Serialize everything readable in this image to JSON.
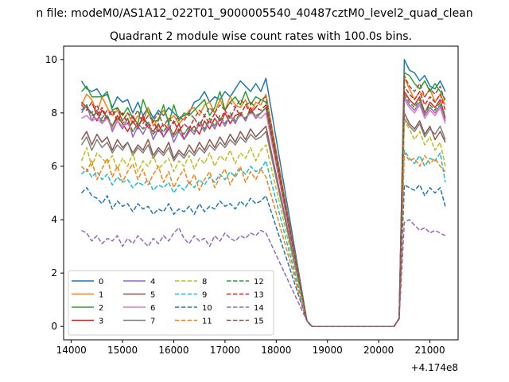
{
  "figure": {
    "suptitle": "n file: modeM0/AS1A12_022T01_9000005540_40487cztM0_level2_quad_clean",
    "offset_label": "+4.174e8"
  },
  "chart_data": {
    "type": "line",
    "title": "Quadrant 2 module wise count rates with 100.0s bins.",
    "xlabel": "",
    "ylabel": "",
    "x_offset": 417400000,
    "xlim": [
      13850,
      21550
    ],
    "ylim": [
      -0.5,
      10.5
    ],
    "xticks": [
      14000,
      15000,
      16000,
      17000,
      18000,
      19000,
      20000,
      21000
    ],
    "yticks": [
      0,
      2,
      4,
      6,
      8,
      10
    ],
    "grid": false,
    "legend": {
      "placement": "lower-left",
      "columns": 4
    },
    "x_start": 14200,
    "x_step": 100,
    "gap": {
      "last_on": 18500,
      "first_zero": 18700,
      "last_zero": 20300,
      "first_back": 20500,
      "partial": [
        [
          18600,
          0.2
        ],
        [
          20400,
          0.3
        ]
      ]
    },
    "x_end": 21200,
    "series": [
      {
        "name": "0",
        "color": "#1f77b4",
        "dash": "solid",
        "first": [
          9.2,
          8.9,
          8.8,
          8.9,
          8.6,
          8.7,
          8.2,
          8.6,
          8.4,
          8.5,
          8.0,
          8.4,
          7.9,
          8.2,
          7.8,
          8.1,
          7.9,
          8.2,
          8.0,
          7.8,
          7.9,
          8.0,
          8.4,
          8.5,
          8.8,
          8.4,
          8.6,
          8.5,
          8.8,
          8.6,
          8.9,
          9.2,
          9.0,
          8.8,
          9.1,
          8.8,
          9.3
        ],
        "second": [
          10.0,
          9.6,
          9.5,
          9.2,
          9.4,
          9.0,
          8.9,
          9.2,
          8.8
        ]
      },
      {
        "name": "1",
        "color": "#ff7f0e",
        "dash": "solid",
        "first": [
          8.3,
          8.7,
          8.5,
          8.0,
          8.6,
          8.2,
          7.9,
          8.1,
          7.7,
          8.0,
          7.6,
          7.9,
          7.7,
          8.2,
          7.5,
          7.8,
          8.1,
          7.7,
          7.9,
          7.6,
          7.8,
          8.1,
          8.2,
          7.9,
          8.3,
          8.4,
          8.0,
          8.5,
          8.1,
          8.6,
          8.3,
          8.2,
          8.5,
          8.0,
          8.4,
          8.3,
          8.7
        ],
        "second": [
          9.3,
          8.9,
          8.5,
          8.8,
          8.6,
          8.9,
          8.4,
          8.7,
          8.3
        ]
      },
      {
        "name": "2",
        "color": "#2ca02c",
        "dash": "solid",
        "first": [
          8.8,
          9.0,
          8.6,
          8.6,
          8.6,
          8.8,
          8.1,
          8.2,
          7.9,
          8.2,
          7.8,
          7.6,
          8.5,
          8.0,
          7.7,
          7.7,
          8.3,
          7.6,
          8.3,
          7.7,
          8.0,
          7.9,
          8.1,
          8.3,
          8.5,
          7.9,
          8.2,
          8.8,
          8.1,
          8.4,
          8.6,
          8.3,
          8.8,
          8.3,
          8.6,
          8.5,
          8.4
        ],
        "second": [
          9.5,
          9.4,
          9.1,
          8.9,
          9.2,
          8.8,
          9.1,
          8.8,
          8.5
        ]
      },
      {
        "name": "3",
        "color": "#d62728",
        "dash": "solid",
        "first": [
          8.4,
          8.2,
          8.0,
          7.7,
          8.1,
          7.8,
          7.5,
          7.9,
          7.6,
          7.3,
          7.7,
          7.4,
          7.9,
          7.5,
          7.3,
          7.6,
          7.1,
          7.4,
          7.2,
          7.6,
          7.0,
          7.3,
          7.5,
          7.2,
          7.7,
          7.4,
          7.8,
          7.5,
          8.0,
          7.6,
          7.9,
          8.0,
          7.7,
          8.2,
          7.8,
          8.0,
          8.2
        ],
        "second": [
          8.8,
          8.5,
          8.3,
          8.6,
          8.0,
          8.4,
          8.2,
          8.5,
          7.8
        ]
      },
      {
        "name": "4",
        "color": "#9467bd",
        "dash": "solid",
        "first": [
          8.0,
          8.3,
          7.7,
          8.1,
          7.6,
          7.9,
          7.3,
          7.7,
          7.4,
          7.8,
          7.1,
          7.5,
          7.2,
          7.6,
          7.0,
          7.4,
          7.1,
          7.5,
          6.9,
          7.3,
          7.0,
          7.4,
          7.2,
          7.6,
          7.3,
          7.7,
          7.4,
          7.8,
          7.5,
          7.9,
          7.6,
          8.0,
          7.7,
          8.1,
          7.8,
          8.0,
          8.2
        ],
        "second": [
          8.6,
          8.3,
          8.1,
          8.4,
          7.9,
          8.2,
          8.0,
          8.3,
          7.7
        ]
      },
      {
        "name": "5",
        "color": "#8c564b",
        "dash": "solid",
        "first": [
          7.0,
          7.3,
          6.8,
          7.2,
          6.9,
          7.1,
          6.6,
          7.0,
          6.7,
          6.9,
          6.5,
          6.8,
          6.6,
          7.0,
          6.4,
          6.7,
          6.5,
          6.9,
          6.3,
          6.6,
          6.4,
          6.8,
          6.5,
          6.9,
          6.6,
          7.0,
          6.7,
          7.1,
          6.8,
          7.2,
          6.9,
          7.3,
          7.0,
          7.4,
          7.1,
          7.3,
          7.5
        ],
        "second": [
          8.0,
          7.6,
          7.4,
          7.7,
          7.2,
          7.5,
          7.0,
          7.3,
          6.9
        ]
      },
      {
        "name": "6",
        "color": "#e377c2",
        "dash": "solid",
        "first": [
          7.8,
          7.9,
          7.7,
          7.8,
          7.6,
          7.8,
          7.4,
          7.7,
          7.5,
          7.6,
          7.3,
          7.6,
          7.4,
          7.5,
          7.2,
          7.4,
          7.3,
          7.5,
          7.1,
          7.4,
          7.2,
          7.5,
          7.3,
          7.6,
          7.4,
          7.7,
          7.5,
          7.8,
          7.6,
          7.9,
          7.7,
          7.9,
          7.8,
          8.0,
          7.9,
          7.8,
          8.0
        ],
        "second": [
          8.5,
          8.2,
          8.0,
          8.3,
          7.8,
          8.1,
          7.9,
          8.2,
          7.6
        ]
      },
      {
        "name": "7",
        "color": "#7f7f7f",
        "dash": "solid",
        "first": [
          6.8,
          7.1,
          6.6,
          7.0,
          6.7,
          6.9,
          6.5,
          6.8,
          6.6,
          6.9,
          6.4,
          6.7,
          6.5,
          6.8,
          6.3,
          6.6,
          6.4,
          6.7,
          6.2,
          6.5,
          6.3,
          6.6,
          6.4,
          6.7,
          6.5,
          6.8,
          6.6,
          6.9,
          6.7,
          7.0,
          6.8,
          7.1,
          6.9,
          7.2,
          7.0,
          7.1,
          7.3
        ],
        "second": [
          7.8,
          7.5,
          7.3,
          7.6,
          7.1,
          7.4,
          7.2,
          7.5,
          7.0
        ]
      },
      {
        "name": "8",
        "color": "#bcbd22",
        "dash": "dashed",
        "first": [
          6.2,
          6.7,
          6.0,
          6.5,
          6.3,
          6.1,
          6.4,
          5.9,
          6.3,
          6.0,
          6.5,
          5.8,
          6.2,
          6.0,
          6.4,
          5.9,
          6.1,
          6.3,
          5.8,
          6.2,
          6.0,
          6.4,
          5.9,
          6.3,
          6.1,
          6.5,
          6.0,
          6.4,
          6.2,
          6.6,
          6.1,
          6.5,
          6.3,
          6.7,
          6.2,
          6.6,
          6.8
        ],
        "second": [
          7.7,
          7.4,
          7.0,
          7.3,
          6.8,
          7.1,
          6.6,
          6.9,
          6.0
        ]
      },
      {
        "name": "9",
        "color": "#17becf",
        "dash": "dashed",
        "first": [
          5.7,
          5.9,
          5.6,
          5.8,
          5.5,
          5.7,
          5.3,
          5.6,
          5.4,
          5.5,
          5.2,
          5.4,
          5.3,
          5.5,
          5.1,
          5.3,
          5.2,
          5.4,
          5.0,
          5.3,
          5.1,
          5.4,
          5.2,
          5.5,
          5.3,
          5.6,
          5.4,
          5.7,
          5.5,
          5.8,
          5.6,
          5.9,
          5.7,
          6.0,
          5.8,
          5.9,
          6.2
        ],
        "second": [
          6.6,
          6.3,
          6.1,
          6.4,
          6.0,
          6.3,
          6.2,
          6.5,
          5.4
        ]
      },
      {
        "name": "10",
        "color": "#1f77b4",
        "dash": "dashed",
        "first": [
          5.0,
          5.2,
          4.9,
          4.8,
          4.6,
          4.9,
          4.4,
          4.7,
          4.5,
          4.6,
          4.3,
          4.6,
          4.4,
          4.5,
          4.2,
          4.4,
          4.3,
          4.6,
          4.2,
          4.4,
          4.3,
          4.5,
          4.2,
          4.6,
          4.3,
          4.5,
          4.4,
          4.7,
          4.5,
          4.6,
          4.4,
          4.7,
          4.5,
          4.8,
          4.6,
          4.7,
          4.9
        ],
        "second": [
          5.3,
          5.2,
          5.1,
          5.3,
          4.9,
          5.2,
          5.0,
          5.2,
          4.5
        ]
      },
      {
        "name": "11",
        "color": "#ff7f0e",
        "dash": "dashed",
        "first": [
          6.0,
          5.8,
          6.2,
          5.5,
          5.9,
          6.3,
          5.6,
          6.0,
          5.4,
          5.8,
          6.1,
          5.5,
          5.9,
          5.3,
          5.7,
          6.0,
          5.4,
          5.8,
          5.2,
          5.6,
          5.9,
          5.3,
          5.7,
          5.1,
          5.5,
          5.8,
          5.2,
          5.6,
          5.9,
          5.3,
          5.7,
          6.0,
          5.4,
          5.8,
          5.5,
          5.9,
          5.6
        ],
        "second": [
          6.5,
          6.2,
          6.3,
          6.0,
          6.4,
          6.1,
          6.3,
          6.0,
          5.8
        ]
      },
      {
        "name": "12",
        "color": "#2ca02c",
        "dash": "dashed",
        "first": [
          8.1,
          8.3,
          7.9,
          8.0,
          7.7,
          7.9,
          7.5,
          7.8,
          7.6,
          7.8,
          7.3,
          7.6,
          7.4,
          7.7,
          7.2,
          7.5,
          7.3,
          7.6,
          7.1,
          7.4,
          7.2,
          7.5,
          7.3,
          7.7,
          7.4,
          7.8,
          7.5,
          7.9,
          7.6,
          8.0,
          7.7,
          8.0,
          7.8,
          8.1,
          7.9,
          8.0,
          8.2
        ],
        "second": [
          8.7,
          8.4,
          8.2,
          8.5,
          8.0,
          8.3,
          8.1,
          8.4,
          7.9
        ]
      },
      {
        "name": "13",
        "color": "#d62728",
        "dash": "dashed",
        "first": [
          8.3,
          8.1,
          8.4,
          7.9,
          8.2,
          7.8,
          8.1,
          7.7,
          8.0,
          7.6,
          7.9,
          7.5,
          7.8,
          7.4,
          7.7,
          7.3,
          7.6,
          7.4,
          7.7,
          7.3,
          7.6,
          7.4,
          7.8,
          7.5,
          7.9,
          7.6,
          8.0,
          7.7,
          8.1,
          7.8,
          8.2,
          7.9,
          8.3,
          8.0,
          8.2,
          8.1,
          8.3
        ],
        "second": [
          9.0,
          8.7,
          8.5,
          8.8,
          8.3,
          8.6,
          8.4,
          8.7,
          8.1
        ]
      },
      {
        "name": "14",
        "color": "#9467bd",
        "dash": "dashed",
        "first": [
          3.6,
          3.5,
          3.2,
          3.4,
          3.1,
          3.3,
          3.2,
          3.4,
          3.0,
          3.3,
          3.1,
          3.4,
          3.2,
          3.0,
          3.3,
          3.1,
          3.4,
          3.2,
          3.5,
          3.7,
          3.3,
          3.1,
          3.4,
          3.2,
          3.3,
          3.0,
          3.4,
          3.2,
          3.5,
          3.3,
          3.2,
          3.4,
          3.3,
          3.5,
          3.4,
          3.6,
          3.5
        ],
        "second": [
          3.9,
          4.0,
          3.8,
          3.6,
          3.7,
          3.5,
          3.6,
          3.5,
          3.4
        ]
      },
      {
        "name": "15",
        "color": "#8c564b",
        "dash": "dashed",
        "first": [
          8.4,
          8.2,
          8.0,
          8.3,
          7.8,
          8.1,
          7.9,
          8.2,
          7.7,
          8.0,
          7.8,
          8.1,
          7.6,
          7.9,
          7.7,
          8.0,
          7.5,
          7.8,
          7.6,
          7.9,
          7.7,
          8.0,
          7.8,
          8.1,
          7.9,
          8.2,
          8.0,
          8.3,
          8.1,
          8.4,
          8.2,
          8.5,
          8.3,
          8.4,
          8.2,
          8.5,
          8.6
        ],
        "second": [
          9.4,
          9.0,
          8.8,
          9.1,
          8.6,
          8.9,
          8.7,
          9.0,
          8.4
        ]
      }
    ]
  }
}
